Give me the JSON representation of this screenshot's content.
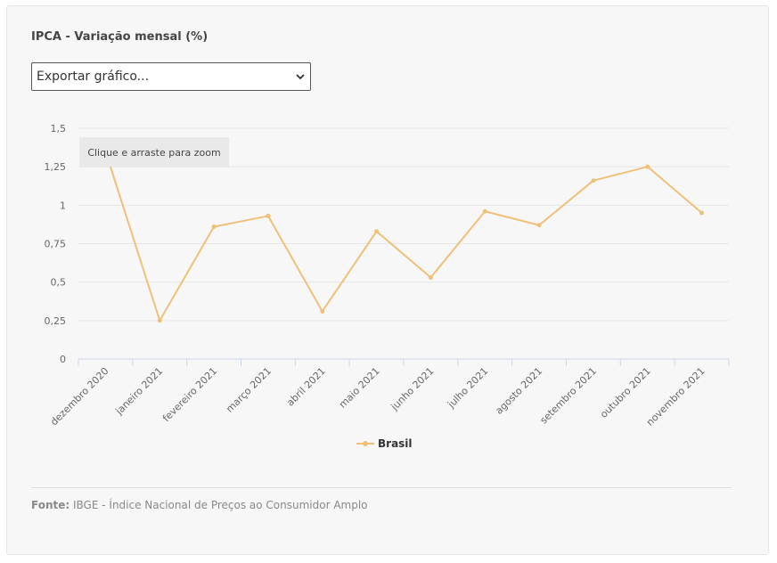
{
  "title": "IPCA - Variação mensal (%)",
  "export_select": {
    "selected": "Exportar gráfico..."
  },
  "zoom_hint": "Clique e arraste para zoom",
  "source": {
    "label": "Fonte:",
    "text": "IBGE - Índice Nacional de Preços ao Consumidor Amplo"
  },
  "colors": {
    "series": "#f0c07a",
    "grid": "#e6e6e6",
    "axis": "#ccd6eb"
  },
  "chart_data": {
    "type": "line",
    "title": "IPCA - Variação mensal (%)",
    "categories": [
      "dezembro 2020",
      "janeiro 2021",
      "fevereiro 2021",
      "março 2021",
      "abril 2021",
      "maio 2021",
      "junho 2021",
      "julho 2021",
      "agosto 2021",
      "setembro 2021",
      "outubro 2021",
      "novembro 2021"
    ],
    "series": [
      {
        "name": "Brasil",
        "values": [
          1.35,
          0.25,
          0.86,
          0.93,
          0.31,
          0.83,
          0.53,
          0.96,
          0.87,
          1.16,
          1.25,
          0.95
        ]
      }
    ],
    "y_ticks": [
      "0",
      "0,25",
      "0,5",
      "0,75",
      "1",
      "1,25",
      "1,5"
    ],
    "ylim": [
      0,
      1.5
    ],
    "grid": true,
    "legend_position": "bottom-center"
  }
}
